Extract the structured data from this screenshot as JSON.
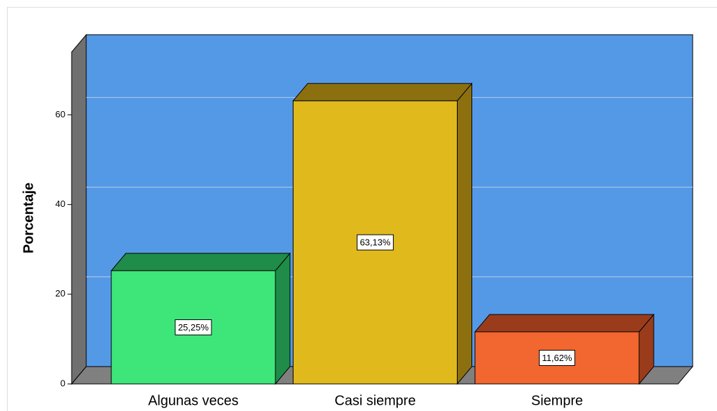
{
  "chart_data": {
    "type": "bar3d",
    "y_label": "Porcentaje",
    "categories": [
      "Algunas veces",
      "Casi siempre",
      "Siempre"
    ],
    "values": [
      25.25,
      63.13,
      11.62
    ],
    "value_labels": [
      "25,25%",
      "63,13%",
      "11,62%"
    ],
    "colors": [
      "#3ee67a",
      "#e0b91c",
      "#f26630"
    ],
    "side_colors": [
      "#1f8c49",
      "#8c7010",
      "#9a3c1c"
    ],
    "ylim": [
      0,
      74
    ],
    "yticks": [
      0,
      20,
      40,
      60
    ],
    "grid": true
  }
}
